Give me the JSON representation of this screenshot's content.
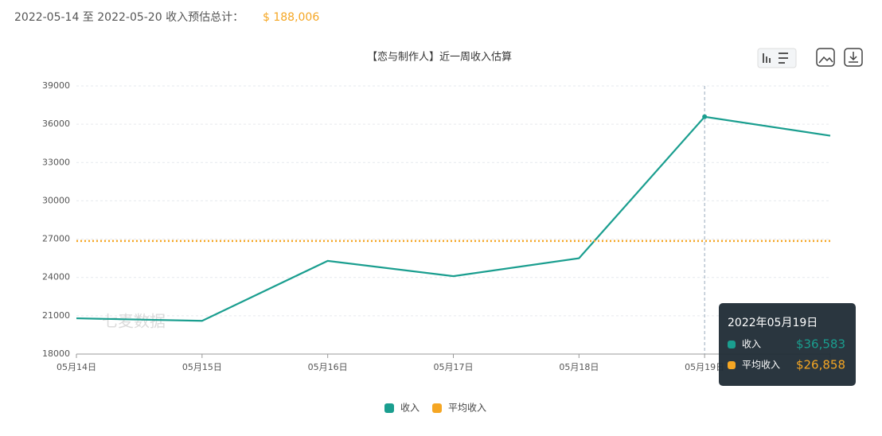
{
  "header": {
    "text": "2022-05-14 至 2022-05-20 收入预估总计：",
    "total": "$ 188,006"
  },
  "chart_data": {
    "type": "line",
    "title": "【恋与制作人】近一周收入估算",
    "categories": [
      "05月14日",
      "05月15日",
      "05月16日",
      "05月17日",
      "05月18日",
      "05月19日",
      null
    ],
    "series": [
      {
        "name": "收入",
        "color": "#1a9e8f",
        "line_style": "solid",
        "values": [
          20800,
          20600,
          25300,
          24100,
          25500,
          36583,
          35100
        ]
      },
      {
        "name": "平均收入",
        "color": "#f5a623",
        "line_style": "dotted",
        "values": [
          26858,
          26858,
          26858,
          26858,
          26858,
          26858,
          26858
        ]
      }
    ],
    "ylim": [
      18000,
      39000
    ],
    "yticks": [
      18000,
      21000,
      24000,
      27000,
      30000,
      33000,
      36000,
      39000
    ],
    "grid": true,
    "legend": "bottom",
    "watermark": "七麦数据",
    "tooltip": {
      "title": "2022年05月19日",
      "index": 5,
      "labels": [
        "$36,583",
        "$26,858"
      ]
    }
  }
}
